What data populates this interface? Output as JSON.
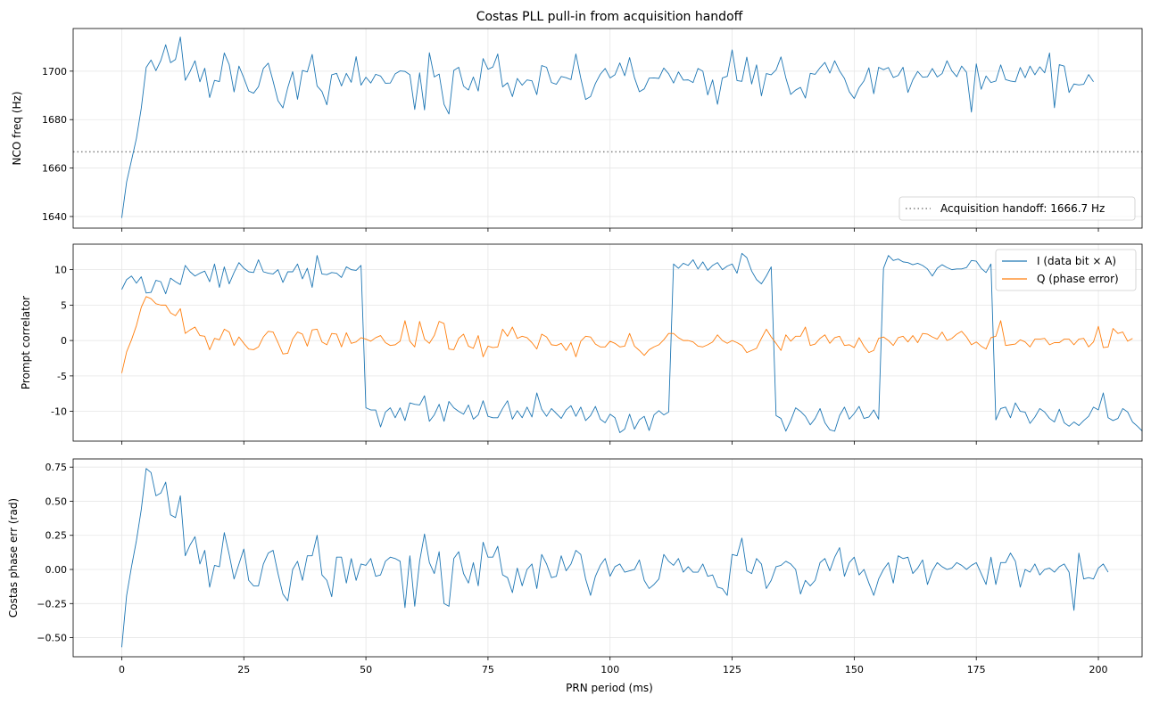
{
  "figure": {
    "title": "Costas PLL pull-in from acquisition handoff",
    "xlabel": "PRN period (ms)",
    "x_ticks": [
      0,
      25,
      50,
      75,
      100,
      125,
      150,
      175,
      200
    ],
    "xlim": [
      -9.95,
      208.95
    ]
  },
  "colors": {
    "blue": "#1f77b4",
    "orange": "#ff7f0e",
    "handoff": "#808080",
    "grid": "#e6e6e6"
  },
  "chart_data": [
    {
      "type": "line",
      "ylabel": "NCO freq (Hz)",
      "ylim": [
        1635.2,
        1717.6
      ],
      "y_ticks": [
        1640,
        1660,
        1680,
        1700
      ],
      "grid": true,
      "legend": "lower-right",
      "hline": {
        "y": 1666.7,
        "style": "dotted",
        "label": "Acquisition handoff: 1666.7 Hz"
      },
      "series": [
        {
          "color": "blue",
          "x_start": 0,
          "x_step": 1,
          "values": [
            1639.4,
            1654.3,
            1663.2,
            1672.2,
            1684.7,
            1701.5,
            1704.6,
            1700.2,
            1704.4,
            1710.9,
            1703.5,
            1704.8,
            1714.1,
            1696.2,
            1699.9,
            1704.3,
            1695.6,
            1701.2,
            1689.1,
            1696.2,
            1695.7,
            1707.5,
            1702.7,
            1691.4,
            1702.1,
            1697.2,
            1691.8,
            1690.9,
            1693.6,
            1701.1,
            1703.3,
            1695.8,
            1687.8,
            1684.8,
            1693.2,
            1699.8,
            1688.4,
            1700.3,
            1699.7,
            1706.9,
            1693.9,
            1691.6,
            1686.1,
            1698.5,
            1699.1,
            1693.9,
            1699.1,
            1695.4,
            1706.0,
            1694.2,
            1697.5,
            1695.1,
            1698.7,
            1698.0,
            1695.0,
            1695.1,
            1698.9,
            1700.1,
            1699.9,
            1698.5,
            1684.2,
            1699.3,
            1684.0,
            1707.6,
            1697.6,
            1698.8,
            1686.3,
            1682.3,
            1700.3,
            1701.6,
            1693.8,
            1692.2,
            1697.6,
            1691.8,
            1705.2,
            1700.8,
            1701.7,
            1707.1,
            1693.5,
            1695.2,
            1689.5,
            1697.0,
            1694.2,
            1696.4,
            1696.0,
            1690.3,
            1702.3,
            1701.6,
            1695.3,
            1694.6,
            1697.8,
            1697.3,
            1696.5,
            1707.1,
            1697.1,
            1688.3,
            1689.5,
            1694.9,
            1698.7,
            1701.1,
            1697.2,
            1698.5,
            1703.4,
            1698.1,
            1705.6,
            1697.3,
            1691.5,
            1692.7,
            1697.1,
            1697.2,
            1697.0,
            1701.3,
            1698.9,
            1695.1,
            1699.7,
            1696.3,
            1696.4,
            1695.3,
            1701.1,
            1700.0,
            1690.2,
            1696.4,
            1686.3,
            1697.2,
            1697.9,
            1708.8,
            1696.1,
            1695.8,
            1705.8,
            1694.7,
            1702.6,
            1689.8,
            1699.0,
            1698.5,
            1700.5,
            1705.9,
            1697.2,
            1690.4,
            1692.2,
            1693.3,
            1688.9,
            1699.1,
            1698.7,
            1701.4,
            1703.6,
            1699.2,
            1704.3,
            1700.1,
            1697.0,
            1691.5,
            1688.7,
            1693.2,
            1696.0,
            1701.4,
            1690.7,
            1701.6,
            1700.6,
            1701.5,
            1697.4,
            1698.2,
            1701.6,
            1691.2,
            1696.4,
            1699.9,
            1697.5,
            1697.7,
            1701.1,
            1697.6,
            1699.0,
            1704.3,
            1700.1,
            1697.7,
            1702.1,
            1699.5,
            1683.1,
            1703.0,
            1692.5,
            1698.0,
            1695.3,
            1695.9,
            1702.6,
            1696.5,
            1695.9,
            1695.6,
            1701.5,
            1697.3,
            1702.1,
            1698.5,
            1701.8,
            1699.3,
            1707.5,
            1684.9,
            1702.7,
            1702.1,
            1691.2,
            1694.7,
            1694.3,
            1694.6,
            1698.6,
            1695.6
          ]
        }
      ]
    },
    {
      "type": "line",
      "ylabel": "Prompt correlator",
      "ylim": [
        -14.2,
        13.6
      ],
      "y_ticks": [
        -10,
        -5,
        0,
        5,
        10
      ],
      "grid": true,
      "legend": "top-right",
      "series": [
        {
          "name": "I (data bit × A)",
          "color": "blue",
          "x_start": 0,
          "x_step": 1,
          "values": [
            7.2,
            8.6,
            9.1,
            8.1,
            9.0,
            6.7,
            6.8,
            8.5,
            8.3,
            6.6,
            8.8,
            8.3,
            7.9,
            10.6,
            9.7,
            9.1,
            9.5,
            9.8,
            8.3,
            10.8,
            7.5,
            10.4,
            8.0,
            9.6,
            11.0,
            10.2,
            9.7,
            9.6,
            11.4,
            9.7,
            9.5,
            9.4,
            10.0,
            8.2,
            9.7,
            9.7,
            10.8,
            8.7,
            10.2,
            7.5,
            12.0,
            9.4,
            9.3,
            9.6,
            9.5,
            8.9,
            10.4,
            10.0,
            9.9,
            10.6,
            -9.5,
            -9.8,
            -9.8,
            -12.2,
            -10.1,
            -9.5,
            -10.9,
            -9.5,
            -11.3,
            -8.8,
            -9.0,
            -9.1,
            -7.8,
            -11.4,
            -10.5,
            -9.0,
            -11.4,
            -8.6,
            -9.5,
            -10.0,
            -10.4,
            -9.1,
            -11.1,
            -10.5,
            -8.5,
            -10.7,
            -10.9,
            -10.9,
            -9.6,
            -8.5,
            -11.1,
            -9.9,
            -10.9,
            -9.4,
            -10.8,
            -7.4,
            -9.7,
            -10.7,
            -9.6,
            -10.3,
            -11.0,
            -9.8,
            -9.2,
            -10.7,
            -9.4,
            -11.3,
            -10.6,
            -9.3,
            -11.1,
            -11.6,
            -10.4,
            -10.9,
            -13.0,
            -12.5,
            -10.4,
            -12.5,
            -11.2,
            -10.7,
            -12.7,
            -10.5,
            -9.9,
            -10.5,
            -10.1,
            10.8,
            10.2,
            10.9,
            10.6,
            11.4,
            10.1,
            11.1,
            9.9,
            10.6,
            11.0,
            10.0,
            10.5,
            10.8,
            9.5,
            12.3,
            11.7,
            9.8,
            8.6,
            8.0,
            9.1,
            10.4,
            -10.6,
            -11.0,
            -12.8,
            -11.3,
            -9.5,
            -10.0,
            -10.7,
            -11.9,
            -11.0,
            -9.6,
            -11.6,
            -12.6,
            -12.8,
            -10.6,
            -9.4,
            -11.1,
            -10.3,
            -9.3,
            -11.0,
            -10.8,
            -9.8,
            -11.1,
            10.2,
            12.0,
            11.3,
            11.5,
            11.1,
            11.0,
            10.7,
            10.9,
            10.6,
            10.1,
            9.1,
            10.2,
            10.7,
            10.3,
            10.0,
            10.1,
            10.1,
            10.3,
            11.3,
            11.2,
            10.2,
            9.6,
            10.8,
            -11.2,
            -9.6,
            -9.4,
            -10.9,
            -8.8,
            -10.0,
            -10.1,
            -11.7,
            -10.8,
            -9.6,
            -10.1,
            -11.0,
            -11.5,
            -9.7,
            -11.6,
            -12.1,
            -11.5,
            -12.0,
            -11.3,
            -10.7,
            -9.4,
            -9.8,
            -7.4,
            -10.9,
            -11.3,
            -11.0,
            -9.6,
            -10.1,
            -11.5,
            -12.1,
            -12.8
          ]
        },
        {
          "name": "Q (phase error)",
          "color": "orange",
          "x_start": 0,
          "x_step": 1,
          "values": [
            -4.6,
            -1.6,
            0.1,
            2.1,
            4.7,
            6.2,
            5.9,
            5.2,
            5.0,
            5.0,
            3.9,
            3.5,
            4.5,
            1.0,
            1.5,
            1.9,
            0.7,
            0.6,
            -1.3,
            0.3,
            0.1,
            1.6,
            1.2,
            -0.7,
            0.5,
            -0.4,
            -1.2,
            -1.3,
            -0.9,
            0.5,
            1.3,
            1.2,
            -0.3,
            -1.9,
            -1.8,
            0.2,
            1.2,
            0.9,
            -0.8,
            1.5,
            1.6,
            -0.2,
            -0.6,
            1.0,
            0.9,
            -0.9,
            1.1,
            -0.4,
            -0.2,
            0.4,
            0.2,
            -0.1,
            0.4,
            0.7,
            -0.3,
            -0.7,
            -0.6,
            -0.1,
            2.8,
            -0.1,
            -0.9,
            2.7,
            0.2,
            -0.4,
            0.7,
            2.7,
            2.4,
            -1.2,
            -1.3,
            0.3,
            0.9,
            -0.8,
            -1.1,
            0.7,
            -2.3,
            -0.8,
            -1.0,
            -0.9,
            1.6,
            0.6,
            1.9,
            0.3,
            0.6,
            0.4,
            -0.3,
            -1.2,
            0.9,
            0.5,
            -0.6,
            -0.7,
            -0.4,
            -1.4,
            -0.3,
            -2.3,
            -0.1,
            0.6,
            0.5,
            -0.5,
            -0.9,
            -0.9,
            -0.1,
            -0.4,
            -0.9,
            -0.8,
            1.0,
            -0.8,
            -1.4,
            -2.1,
            -1.3,
            -0.9,
            -0.6,
            0.1,
            1.0,
            1.0,
            0.4,
            0.0,
            0.0,
            -0.2,
            -0.8,
            -0.9,
            -0.6,
            -0.2,
            0.8,
            0.0,
            -0.4,
            0.0,
            -0.3,
            -0.7,
            -1.7,
            -1.4,
            -1.1,
            0.3,
            1.6,
            0.5,
            -0.4,
            -1.4,
            0.8,
            -0.1,
            0.6,
            0.6,
            1.9,
            -0.7,
            -0.5,
            0.3,
            0.8,
            -0.4,
            0.4,
            0.6,
            -0.7,
            -0.6,
            -1.0,
            0.4,
            -0.8,
            -1.7,
            -1.4,
            0.3,
            0.5,
            0.0,
            -0.7,
            0.4,
            0.6,
            -0.2,
            0.7,
            -0.3,
            1.0,
            0.9,
            0.5,
            0.2,
            1.2,
            0.0,
            0.3,
            0.9,
            1.3,
            0.5,
            -0.6,
            -0.2,
            -0.8,
            -1.2,
            0.4,
            0.6,
            2.8,
            -0.7,
            -0.6,
            -0.5,
            0.1,
            -0.2,
            -0.9,
            0.2,
            0.2,
            0.3,
            -0.6,
            -0.3,
            -0.3,
            0.2,
            0.2,
            -0.6,
            0.2,
            0.3,
            -0.9,
            -0.2,
            2.0,
            -1.0,
            -0.9,
            1.7,
            1.0,
            1.2,
            -0.1,
            0.3
          ]
        }
      ]
    },
    {
      "type": "line",
      "ylabel": "Costas phase err (rad)",
      "ylim": [
        -0.64,
        0.81
      ],
      "y_ticks": [
        -0.5,
        -0.25,
        0.0,
        0.25,
        0.5,
        0.75
      ],
      "y_tick_labels": [
        "−0.50",
        "−0.25",
        "0.00",
        "0.25",
        "0.50",
        "0.75"
      ],
      "grid": true,
      "series": [
        {
          "color": "blue",
          "x_start": 0,
          "x_step": 1,
          "values": [
            -0.57,
            -0.19,
            0.02,
            0.21,
            0.44,
            0.74,
            0.71,
            0.54,
            0.56,
            0.64,
            0.4,
            0.38,
            0.54,
            0.1,
            0.18,
            0.24,
            0.04,
            0.14,
            -0.13,
            0.03,
            0.02,
            0.27,
            0.11,
            -0.07,
            0.04,
            0.15,
            -0.08,
            -0.12,
            -0.12,
            0.04,
            0.12,
            0.14,
            -0.03,
            -0.18,
            -0.23,
            0.0,
            0.06,
            -0.08,
            0.1,
            0.1,
            0.25,
            -0.04,
            -0.08,
            -0.2,
            0.09,
            0.09,
            -0.1,
            0.08,
            -0.08,
            0.04,
            0.03,
            0.08,
            -0.05,
            -0.04,
            0.06,
            0.09,
            0.08,
            0.06,
            -0.28,
            0.1,
            -0.27,
            0.06,
            0.26,
            0.05,
            -0.03,
            0.13,
            -0.25,
            -0.27,
            0.08,
            0.13,
            -0.03,
            -0.1,
            0.05,
            -0.12,
            0.2,
            0.09,
            0.09,
            0.17,
            -0.04,
            -0.06,
            -0.17,
            0.01,
            -0.12,
            0.0,
            0.04,
            -0.14,
            0.11,
            0.04,
            -0.06,
            -0.05,
            0.1,
            -0.01,
            0.04,
            0.14,
            0.11,
            -0.07,
            -0.19,
            -0.05,
            0.03,
            0.08,
            -0.05,
            0.02,
            0.04,
            -0.02,
            -0.01,
            0.0,
            0.07,
            -0.08,
            -0.14,
            -0.11,
            -0.07,
            0.11,
            0.06,
            0.03,
            0.08,
            -0.02,
            0.02,
            -0.02,
            -0.02,
            0.04,
            -0.05,
            -0.04,
            -0.13,
            -0.14,
            -0.19,
            0.11,
            0.1,
            0.23,
            -0.01,
            -0.03,
            0.08,
            0.04,
            -0.14,
            -0.08,
            0.02,
            0.03,
            0.06,
            0.04,
            0.0,
            -0.18,
            -0.08,
            -0.12,
            -0.08,
            0.05,
            0.08,
            -0.01,
            0.09,
            0.16,
            -0.05,
            0.05,
            0.09,
            -0.04,
            0.0,
            -0.1,
            -0.19,
            -0.07,
            0.0,
            0.05,
            -0.1,
            0.1,
            0.08,
            0.09,
            -0.03,
            0.01,
            0.07,
            -0.11,
            -0.01,
            0.05,
            0.02,
            0.0,
            0.01,
            0.05,
            0.03,
            0.0,
            0.03,
            0.05,
            -0.03,
            -0.11,
            0.09,
            -0.11,
            0.05,
            0.05,
            0.12,
            0.06,
            -0.13,
            0.0,
            -0.02,
            0.04,
            -0.04,
            0.0,
            0.01,
            -0.02,
            0.02,
            0.04,
            -0.02,
            -0.3,
            0.12,
            -0.07,
            -0.06,
            -0.07,
            0.01,
            0.04,
            -0.02
          ]
        }
      ]
    }
  ]
}
